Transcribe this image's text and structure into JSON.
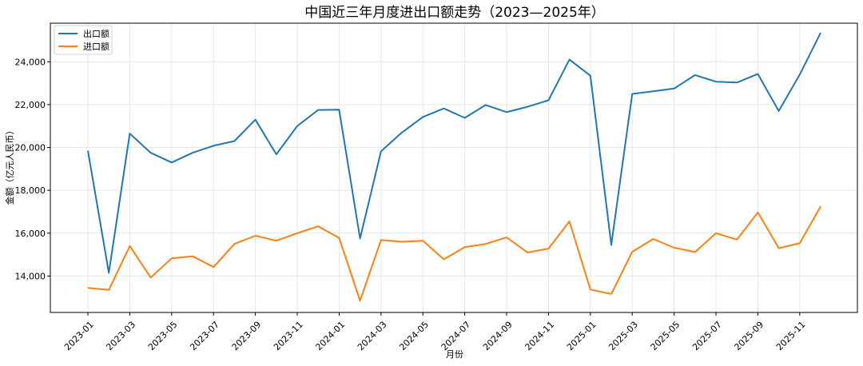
{
  "chart_data": {
    "type": "line",
    "title": "中国近三年月度进出口额走势（2023—2025年）",
    "xlabel": "月份",
    "ylabel": "金额（亿元人民币）",
    "x": [
      "2023-01",
      "2023-02",
      "2023-03",
      "2023-04",
      "2023-05",
      "2023-06",
      "2023-07",
      "2023-08",
      "2023-09",
      "2023-10",
      "2023-11",
      "2023-12",
      "2024-01",
      "2024-02",
      "2024-03",
      "2024-04",
      "2024-05",
      "2024-06",
      "2024-07",
      "2024-08",
      "2024-09",
      "2024-10",
      "2024-11",
      "2024-12",
      "2025-01",
      "2025-02",
      "2025-03",
      "2025-04",
      "2025-05",
      "2025-06",
      "2025-07",
      "2025-08",
      "2025-09",
      "2025-10",
      "2025-11",
      "2025-12"
    ],
    "xtick_labels": [
      "2023-01",
      "2023-03",
      "2023-05",
      "2023-07",
      "2023-09",
      "2023-11",
      "2024-01",
      "2024-03",
      "2024-05",
      "2024-07",
      "2024-09",
      "2024-11",
      "2025-01",
      "2025-03",
      "2025-05",
      "2025-07",
      "2025-09",
      "2025-11"
    ],
    "yticks": [
      14000,
      16000,
      18000,
      20000,
      22000,
      24000
    ],
    "ytick_labels": [
      "14,000",
      "16,000",
      "18,000",
      "20,000",
      "22,000",
      "24,000"
    ],
    "ylim": [
      12300,
      25800
    ],
    "grid": true,
    "legend_position": "top-left",
    "series": [
      {
        "name": "出口额",
        "color": "#1f77b4",
        "values": [
          19850,
          14150,
          20650,
          19750,
          19300,
          19750,
          20080,
          20300,
          21300,
          19680,
          21000,
          21750,
          21760,
          15750,
          19820,
          20700,
          21420,
          21820,
          21380,
          21980,
          21650,
          21900,
          22200,
          24100,
          23350,
          15450,
          22500,
          22620,
          22750,
          23380,
          23070,
          23030,
          23430,
          21700,
          23400,
          25350
        ]
      },
      {
        "name": "进口额",
        "color": "#ff7f0e",
        "values": [
          13450,
          13350,
          15400,
          13930,
          14830,
          14920,
          14420,
          15500,
          15880,
          15650,
          16000,
          16320,
          15780,
          12850,
          15680,
          15600,
          15650,
          14780,
          15350,
          15500,
          15800,
          15100,
          15280,
          16550,
          13370,
          13160,
          15130,
          15730,
          15320,
          15120,
          16000,
          15700,
          16970,
          15300,
          15530,
          17250
        ]
      }
    ]
  }
}
